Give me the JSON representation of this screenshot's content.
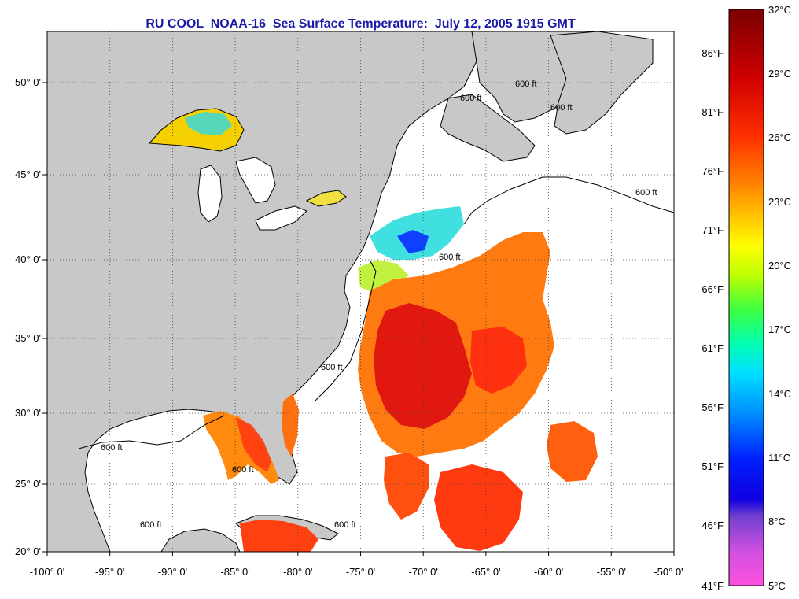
{
  "title": "RU COOL  NOAA-16  Sea Surface Temperature:  July 12, 2005 1915 GMT",
  "map": {
    "lon_range": [
      -100,
      -50
    ],
    "lat_range": [
      20,
      52.5
    ],
    "grid": true,
    "land_color": "#c8c8c8",
    "water_color": "#ffffff",
    "lon_ticks": [
      "-100° 0'",
      "-95° 0'",
      "-90° 0'",
      "-85° 0'",
      "-80° 0'",
      "-75° 0'",
      "-70° 0'",
      "-65° 0'",
      "-60° 0'",
      "-55° 0'",
      "-50° 0'"
    ],
    "lat_ticks": [
      "20° 0'",
      "25° 0'",
      "30° 0'",
      "35° 0'",
      "40° 0'",
      "45° 0'",
      "50° 0'"
    ],
    "contour_labels": [
      "600 ft",
      "600 ft",
      "600 ft",
      "600 ft",
      "600 ft",
      "600 ft",
      "600 ft",
      "600 ft",
      "600 ft",
      "600 ft"
    ]
  },
  "colorbar": {
    "celsius_labels": [
      "32°C",
      "29°C",
      "26°C",
      "23°C",
      "20°C",
      "17°C",
      "14°C",
      "11°C",
      "8°C",
      "5°C"
    ],
    "fahrenheit_labels": [
      "86°F",
      "81°F",
      "76°F",
      "71°F",
      "66°F",
      "61°F",
      "56°F",
      "51°F",
      "46°F",
      "41°F"
    ],
    "colors": [
      "#7a0000",
      "#d00000",
      "#ff2000",
      "#ff6000",
      "#ffa000",
      "#ffe000",
      "#d0ff00",
      "#60ff40",
      "#00ffb0",
      "#00e0ff",
      "#0090ff",
      "#0020ff",
      "#3000d0",
      "#8040e0",
      "#d040e0",
      "#ff40e0"
    ]
  }
}
